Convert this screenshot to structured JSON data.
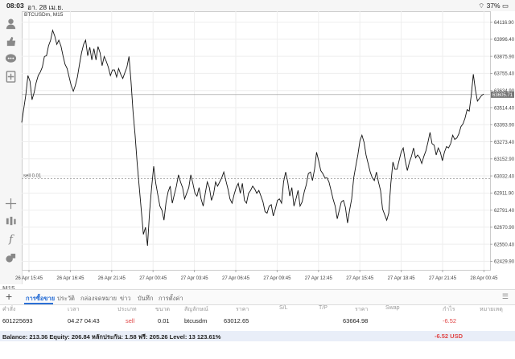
{
  "status_bar": {
    "time": "08:03",
    "date": "อา. 28 เม.ย.",
    "battery": "37%"
  },
  "toolbar": {
    "items": [
      {
        "icon": "person-icon"
      },
      {
        "icon": "thumbs-icon"
      },
      {
        "icon": "chat-icon"
      },
      {
        "icon": "document-add-icon"
      },
      {
        "icon": "crosshair-icon"
      },
      {
        "icon": "indicator-icon"
      },
      {
        "icon": "function-icon"
      },
      {
        "icon": "objects-icon"
      }
    ],
    "timeframe": "M15"
  },
  "chart": {
    "symbol_label": "BTCUSDm, M15",
    "sell_label": "sell 0.01",
    "current_price_label": "63605.71",
    "colors": {
      "line": "#111111",
      "grid": "#eeeeee",
      "sell_line": "#aaaaaa",
      "price_label_bg": "#777777"
    }
  },
  "chart_data": {
    "type": "line",
    "title": "BTCUSDm, M15",
    "y_ticks": [
      "64116.90",
      "63996.40",
      "63875.90",
      "63755.40",
      "63634.90",
      "63514.40",
      "63393.90",
      "63273.40",
      "63152.90",
      "63032.40",
      "62911.90",
      "62791.40",
      "62670.90",
      "62550.40",
      "62429.90"
    ],
    "x_ticks": [
      "26 Apr 15:45",
      "26 Apr 16:45",
      "26 Apr 21:45",
      "27 Apr 00:45",
      "27 Apr 03:45",
      "27 Apr 06:45",
      "27 Apr 09:45",
      "27 Apr 12:45",
      "27 Apr 15:45",
      "27 Apr 18:45",
      "27 Apr 21:45",
      "28 Apr 00:45"
    ],
    "ylim": [
      62370,
      64160
    ],
    "sell_level": 63012.65,
    "current_price": 63605.71,
    "values": [
      63410,
      63510,
      63605,
      63740,
      63700,
      63570,
      63620,
      63690,
      63740,
      63765,
      63800,
      63875,
      63880,
      63950,
      63990,
      64060,
      64020,
      63960,
      63990,
      63950,
      63880,
      63820,
      63790,
      63730,
      63670,
      63630,
      63670,
      63730,
      63820,
      63900,
      63960,
      63990,
      63880,
      63940,
      63850,
      63930,
      63850,
      63945,
      63900,
      63810,
      63875,
      63840,
      63800,
      63740,
      63780,
      63780,
      63730,
      63790,
      63750,
      63720,
      63760,
      63800,
      63875,
      63700,
      63480,
      63320,
      63120,
      62950,
      62790,
      62620,
      62670,
      62540,
      62780,
      62950,
      63100,
      62980,
      62900,
      62820,
      62790,
      62720,
      62850,
      62920,
      62960,
      62840,
      62900,
      62960,
      63040,
      62990,
      62950,
      62870,
      62910,
      62950,
      63040,
      62980,
      62910,
      62890,
      62950,
      62870,
      62820,
      62910,
      62990,
      62950,
      62860,
      62900,
      62990,
      62960,
      62990,
      63020,
      63060,
      63000,
      62940,
      62870,
      62840,
      62900,
      62950,
      62980,
      62910,
      62980,
      62860,
      62840,
      62910,
      62930,
      62960,
      62940,
      62910,
      62930,
      62890,
      62850,
      62780,
      62770,
      62820,
      62830,
      62750,
      62800,
      62860,
      62870,
      62840,
      62990,
      63060,
      62990,
      62890,
      62950,
      62820,
      62870,
      62930,
      62820,
      62850,
      62920,
      62970,
      63050,
      63060,
      63000,
      63080,
      63200,
      63140,
      63070,
      63050,
      63020,
      63020,
      62990,
      62930,
      62870,
      62820,
      62730,
      62790,
      62850,
      62860,
      62810,
      62700,
      62790,
      62870,
      63020,
      63100,
      63180,
      63280,
      63320,
      63270,
      63180,
      63120,
      63060,
      63020,
      63000,
      63060,
      62990,
      62930,
      62800,
      62760,
      62720,
      62770,
      62980,
      63130,
      63080,
      63080,
      63140,
      63200,
      63230,
      63140,
      63070,
      63130,
      63170,
      63230,
      63160,
      63180,
      63160,
      63120,
      63170,
      63210,
      63270,
      63340,
      63260,
      63250,
      63180,
      63230,
      63200,
      63140,
      63200,
      63240,
      63230,
      63260,
      63320,
      63290,
      63300,
      63330,
      63380,
      63400,
      63440,
      63500,
      63490,
      63600,
      63750,
      63640,
      63560,
      63580,
      63600,
      63610
    ]
  },
  "bottom_bar": {
    "tabs": [
      {
        "label": "การซื้อขาย",
        "active": true
      },
      {
        "label": "ประวัติ",
        "active": false
      },
      {
        "label": "กล่องจดหมาย",
        "active": false
      },
      {
        "label": "ข่าว",
        "active": false
      },
      {
        "label": "บันทึก",
        "active": false
      },
      {
        "label": "การตั้งค่า",
        "active": false
      }
    ]
  },
  "trade_table": {
    "headers": [
      "คำสั่ง",
      "เวลา",
      "ประเภท",
      "ขนาด",
      "สัญลักษณ์",
      "ราคา",
      "S/L",
      "T/P",
      "ราคา",
      "Swap",
      "กำไร",
      "หมายเหตุ"
    ],
    "row": {
      "order": "601225693",
      "time": "04.27 04:43",
      "type": "sell",
      "size": "0.01",
      "symbol": "btcusdm",
      "price": "63012.65",
      "sl": "",
      "tp": "",
      "current_price": "63664.98",
      "swap": "",
      "profit": "-6.52",
      "comment": ""
    }
  },
  "balance_bar": {
    "text": "Balance: 213.36 Equity: 206.84 หลักประกัน: 1.58 ฟรี: 205.26 Level: 13 123.61%",
    "profit": "-6.52  USD"
  }
}
